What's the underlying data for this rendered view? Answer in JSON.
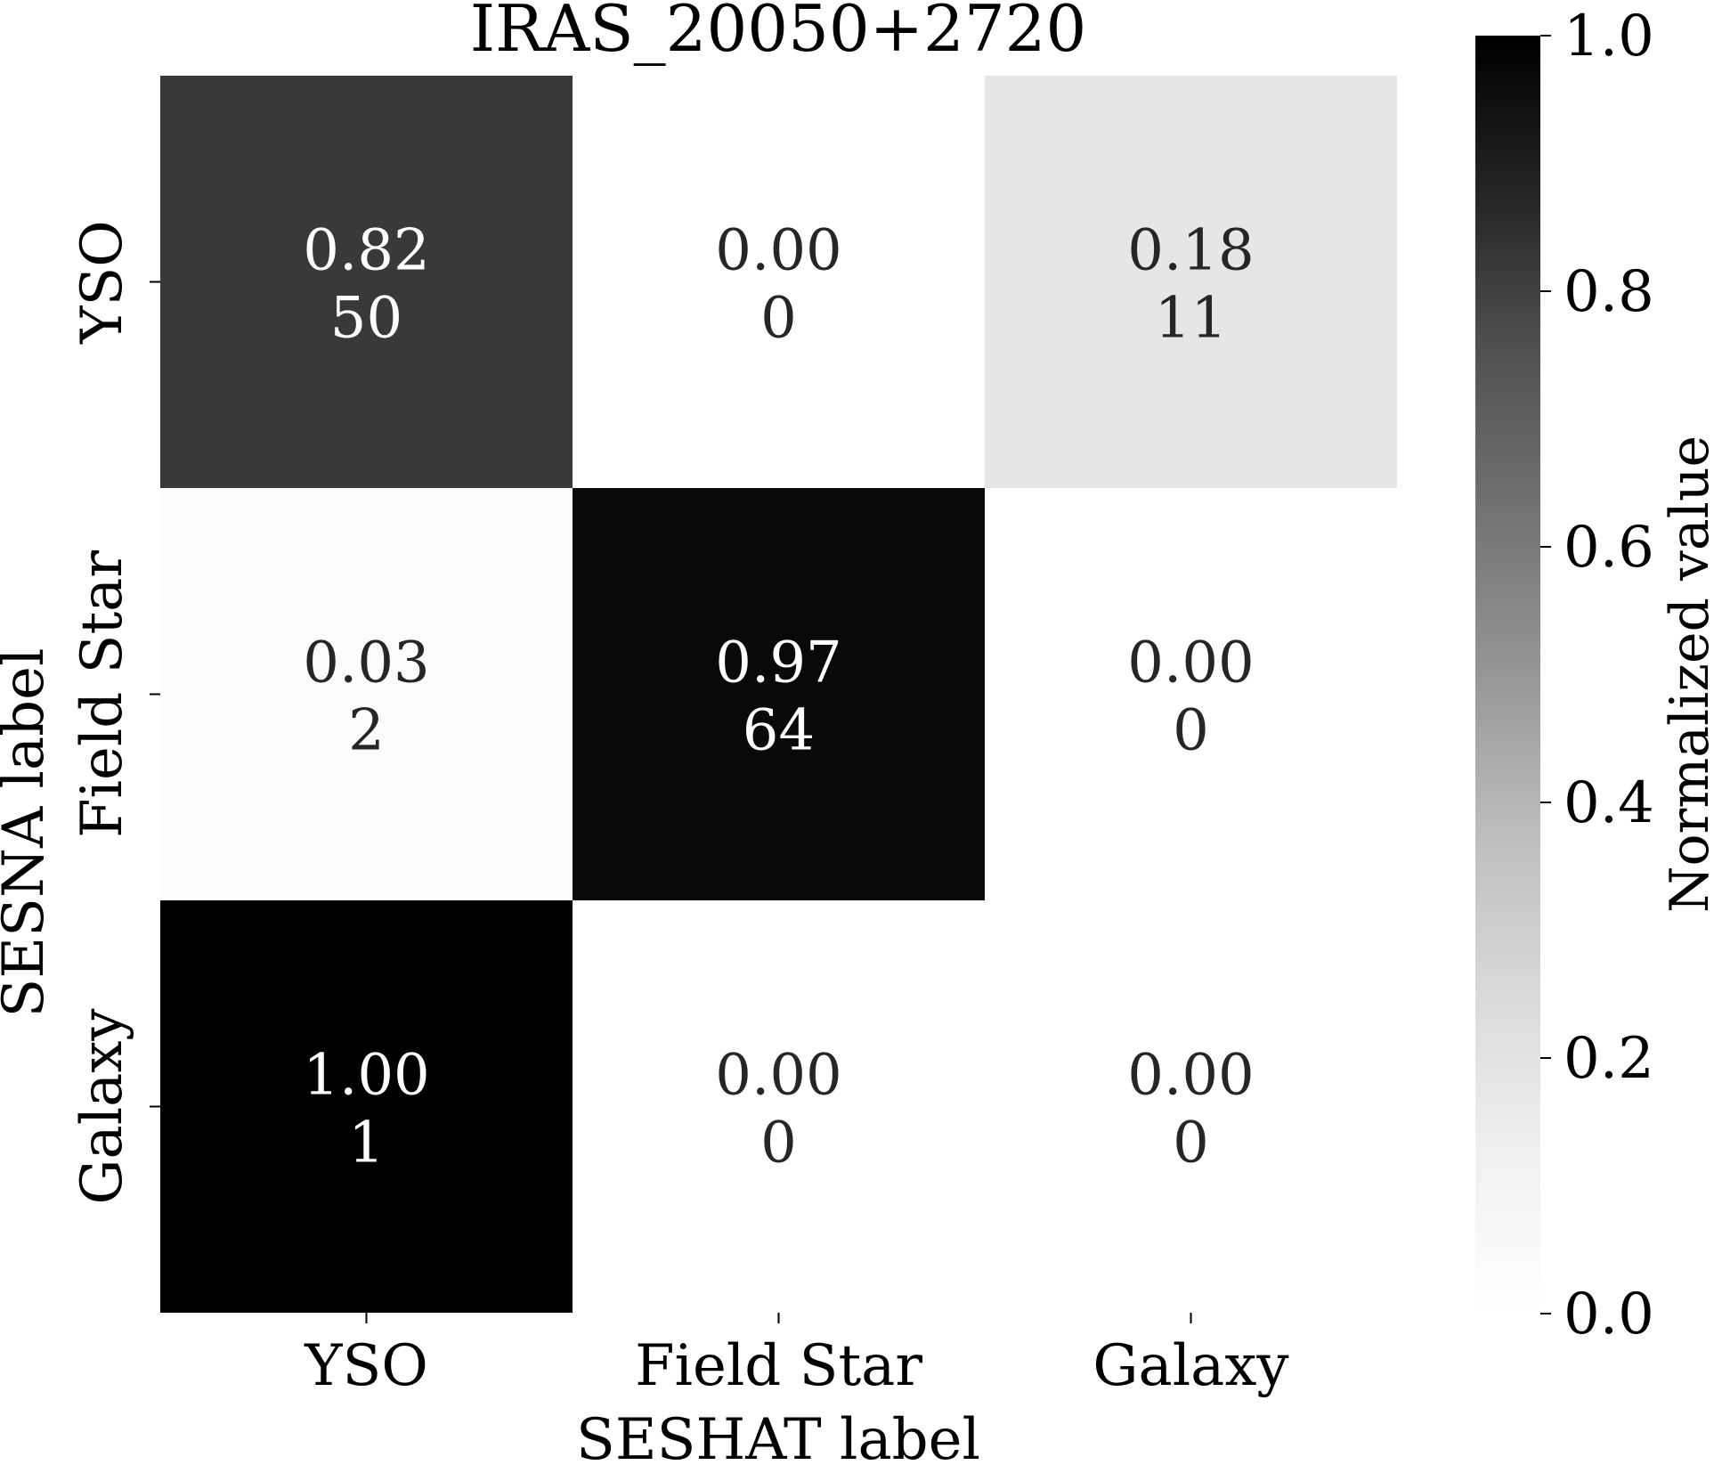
{
  "chart_data": {
    "type": "heatmap",
    "title": "IRAS_20050+2720",
    "xlabel": "SESHAT label",
    "ylabel": "SESNA label",
    "x_categories": [
      "YSO",
      "Field Star",
      "Galaxy"
    ],
    "y_categories": [
      "YSO",
      "Field Star",
      "Galaxy"
    ],
    "values": [
      [
        0.82,
        0.0,
        0.18
      ],
      [
        0.03,
        0.97,
        0.0
      ],
      [
        1.0,
        0.0,
        0.0
      ]
    ],
    "value_labels": [
      [
        "0.82",
        "0.00",
        "0.18"
      ],
      [
        "0.03",
        "0.97",
        "0.00"
      ],
      [
        "1.00",
        "0.00",
        "0.00"
      ]
    ],
    "counts": [
      [
        50,
        0,
        11
      ],
      [
        2,
        64,
        0
      ],
      [
        1,
        0,
        0
      ]
    ],
    "count_labels": [
      [
        "50",
        "0",
        "11"
      ],
      [
        "2",
        "64",
        "0"
      ],
      [
        "1",
        "0",
        "0"
      ]
    ],
    "colormap": "Greys",
    "colorbar": {
      "label": "Normalized value",
      "range": [
        0.0,
        1.0
      ],
      "ticks": [
        0.0,
        0.2,
        0.4,
        0.6,
        0.8,
        1.0
      ],
      "tick_labels": [
        "0.0",
        "0.2",
        "0.4",
        "0.6",
        "0.8",
        "1.0"
      ],
      "placement": "right"
    },
    "colors": {
      "low": "#ffffff",
      "high": "#000000",
      "text_dark": "#262626",
      "text_light": "#ffffff"
    },
    "grid": false
  }
}
